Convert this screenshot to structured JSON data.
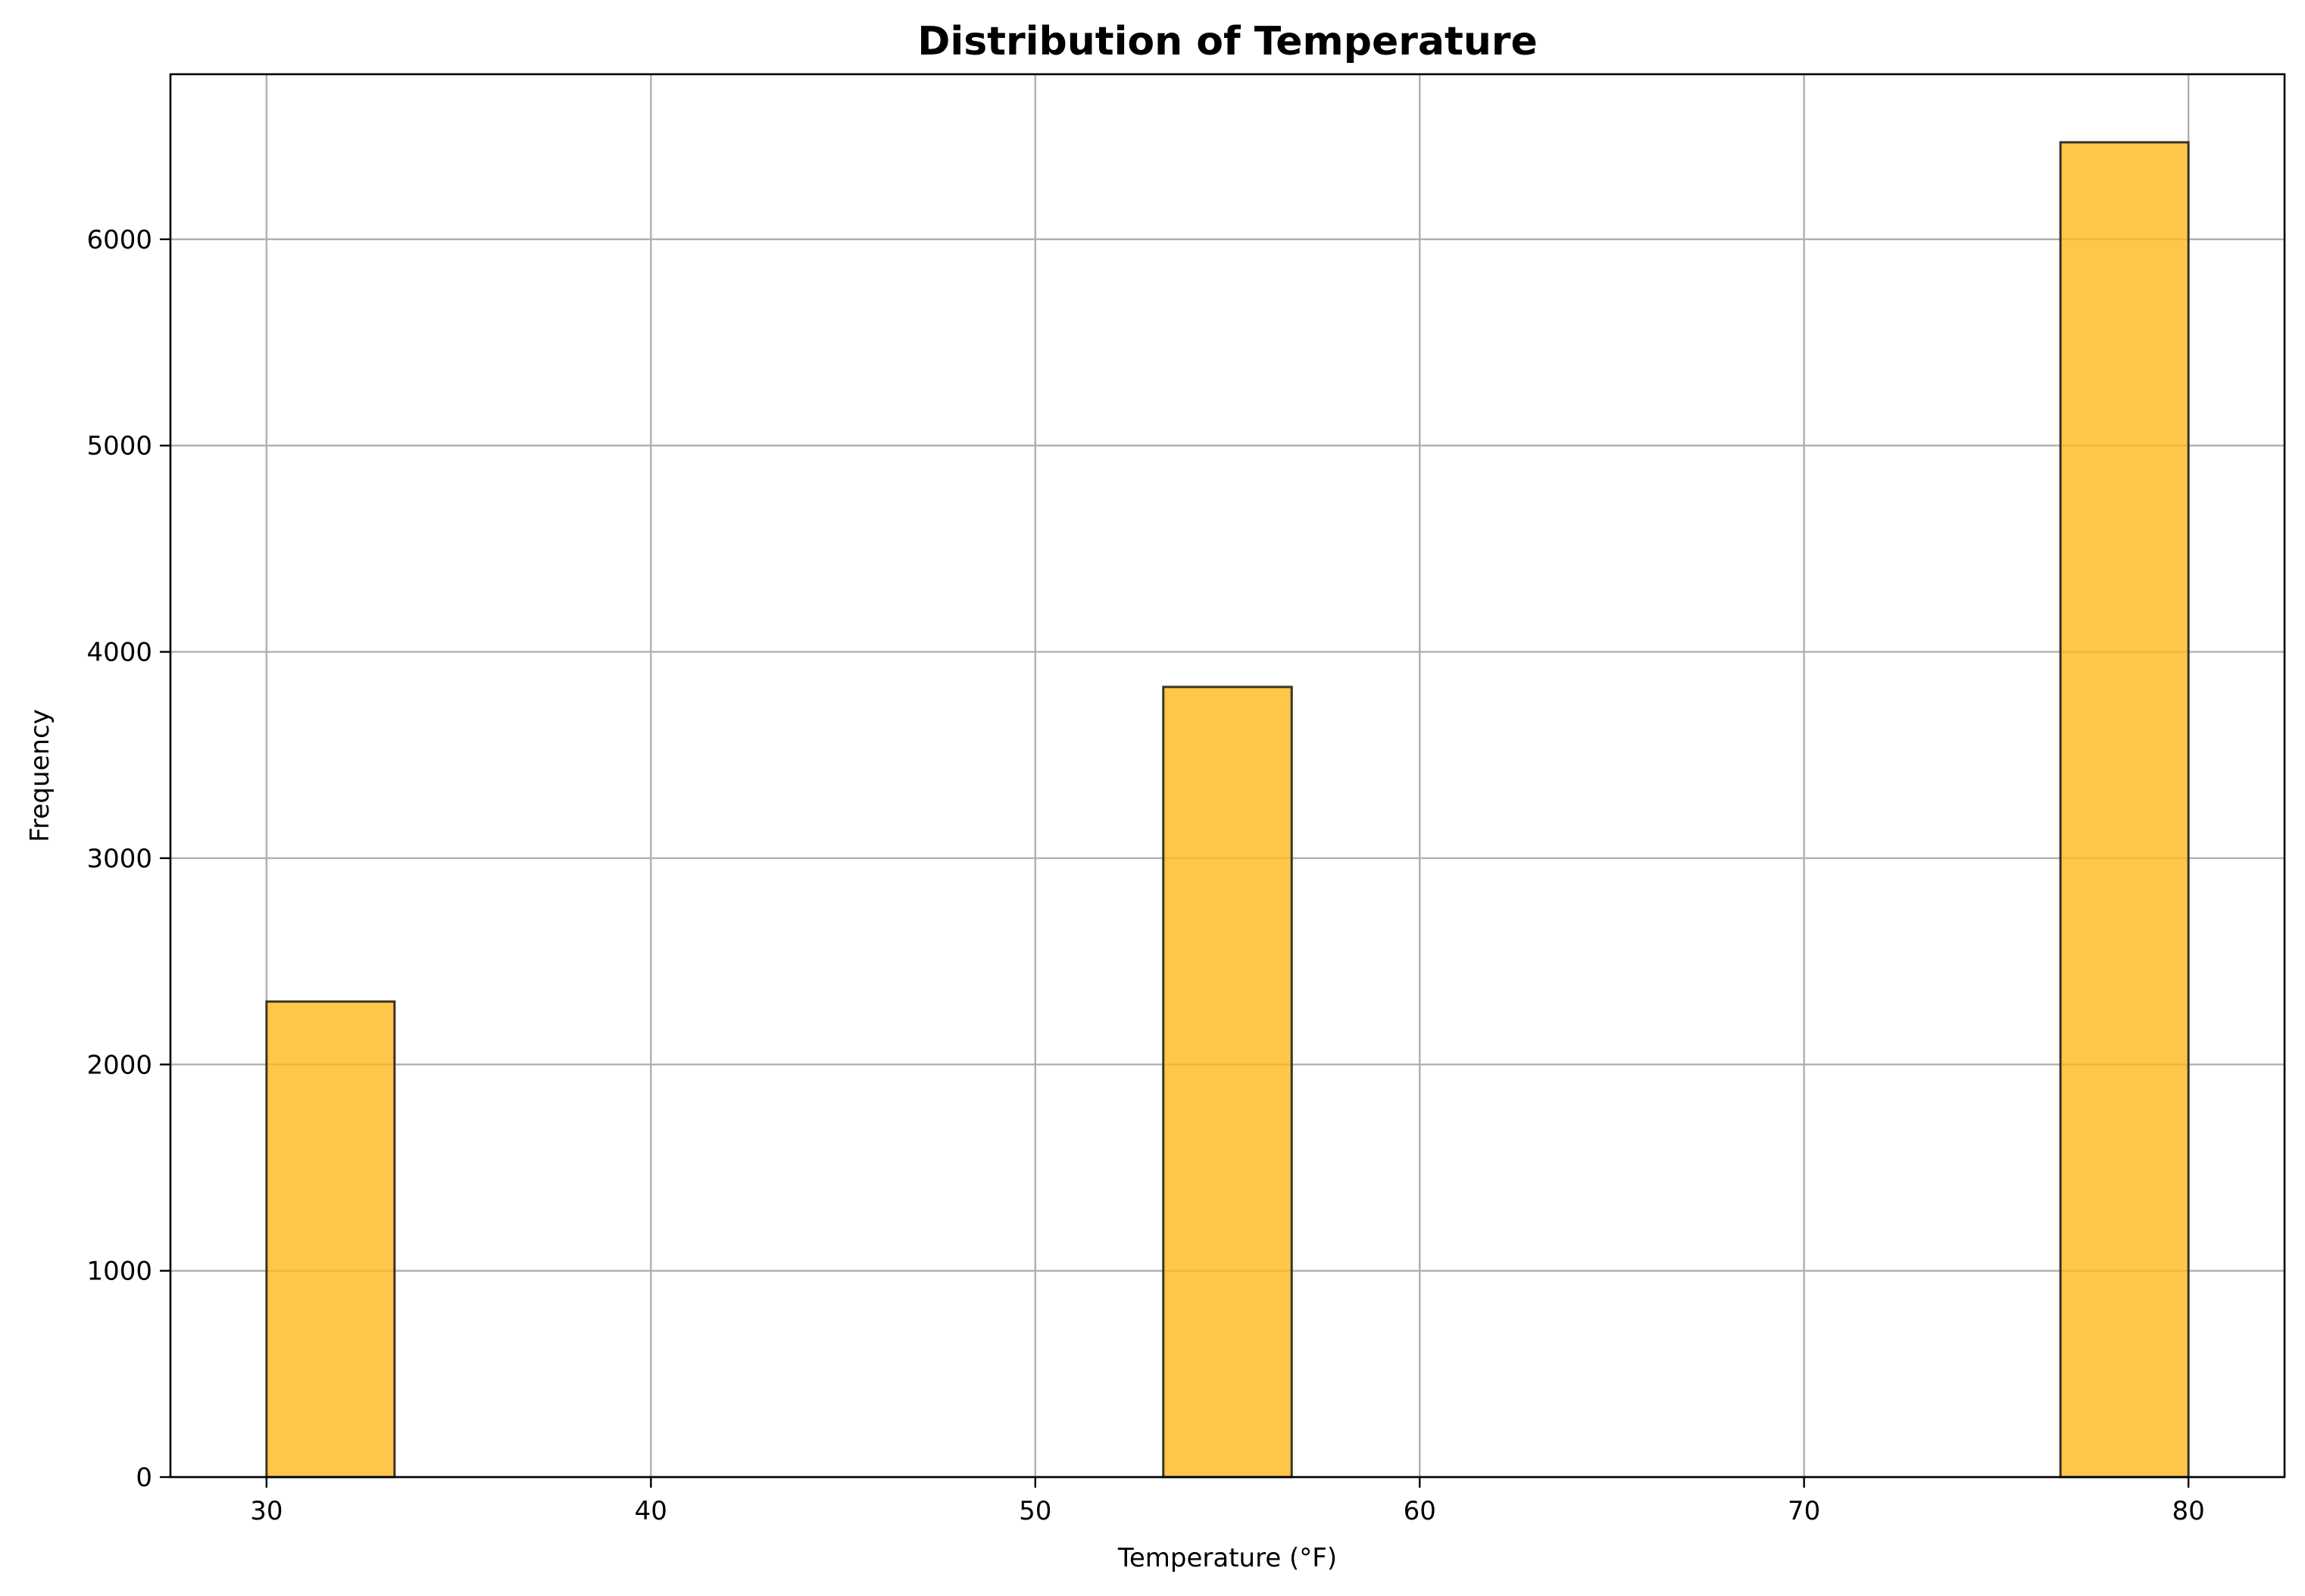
{
  "chart_data": {
    "type": "bar",
    "title": "Distribution of Temperature",
    "xlabel": "Temperature (°F)",
    "ylabel": "Frequency",
    "xlim": [
      27.5,
      82.5
    ],
    "ylim": [
      0,
      6800
    ],
    "xticks": [
      30,
      40,
      50,
      60,
      70,
      80
    ],
    "yticks": [
      0,
      1000,
      2000,
      3000,
      4000,
      5000,
      6000
    ],
    "grid": true,
    "bar_color": "#ffb81c",
    "bar_opacity": 0.8,
    "edge_color": "#000000",
    "bins": [
      {
        "x_start": 30.0,
        "x_end": 33.33,
        "value": 2305
      },
      {
        "x_start": 53.33,
        "x_end": 56.67,
        "value": 3830
      },
      {
        "x_start": 76.67,
        "x_end": 80.0,
        "value": 6470
      }
    ]
  }
}
